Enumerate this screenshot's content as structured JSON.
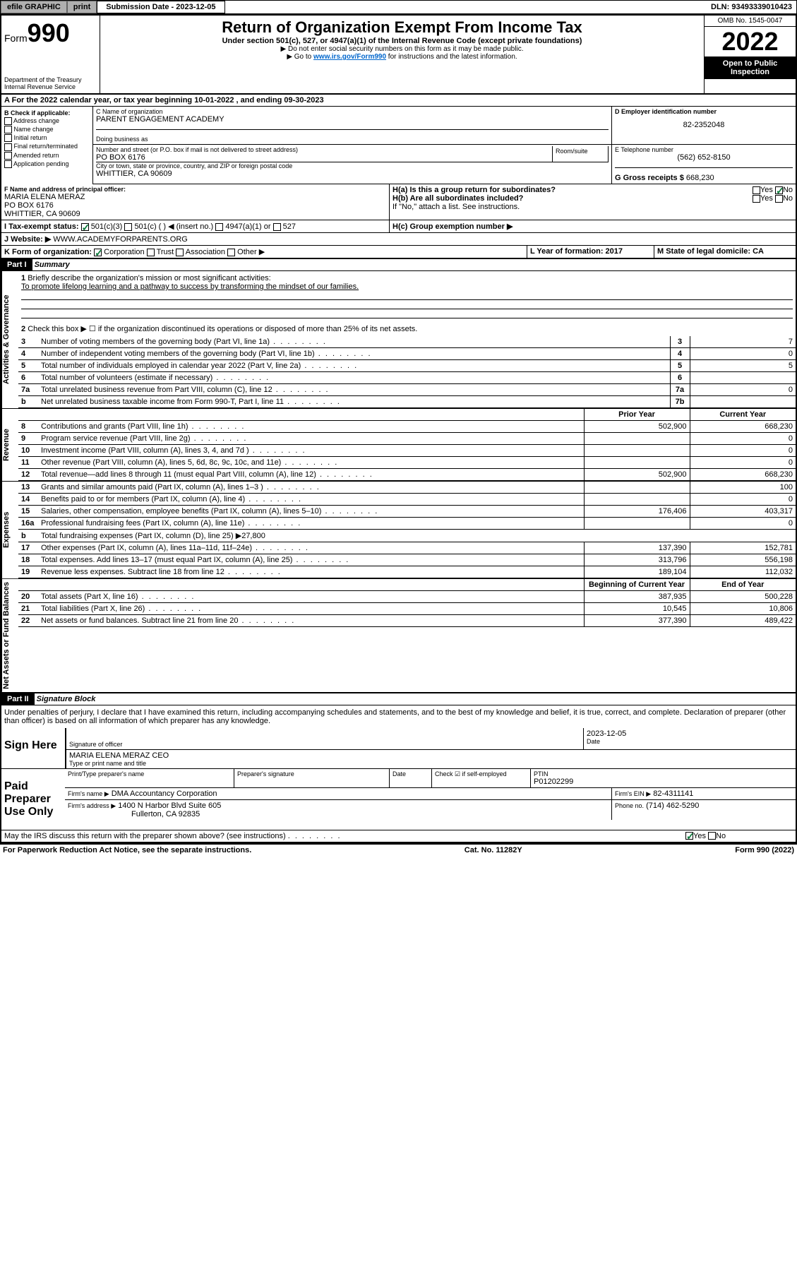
{
  "topbar": {
    "efile": "efile GRAPHIC",
    "print": "print",
    "sub_label": "Submission Date - 2023-12-05",
    "dln": "DLN: 93493339010423"
  },
  "header": {
    "form_prefix": "Form",
    "form_no": "990",
    "dept": "Department of the Treasury",
    "irs": "Internal Revenue Service",
    "title": "Return of Organization Exempt From Income Tax",
    "subtitle": "Under section 501(c), 527, or 4947(a)(1) of the Internal Revenue Code (except private foundations)",
    "note1": "▶ Do not enter social security numbers on this form as it may be made public.",
    "note2_pre": "▶ Go to ",
    "note2_link": "www.irs.gov/Form990",
    "note2_post": " for instructions and the latest information.",
    "omb": "OMB No. 1545-0047",
    "year": "2022",
    "open": "Open to Public Inspection"
  },
  "section_a": {
    "line": "For the 2022 calendar year, or tax year beginning 10-01-2022    , and ending 09-30-2023"
  },
  "section_b": {
    "label": "B Check if applicable:",
    "items": [
      "Address change",
      "Name change",
      "Initial return",
      "Final return/terminated",
      "Amended return",
      "Application pending"
    ]
  },
  "section_c": {
    "name_label": "C Name of organization",
    "name": "PARENT ENGAGEMENT ACADEMY",
    "dba_label": "Doing business as",
    "addr_label": "Number and street (or P.O. box if mail is not delivered to street address)",
    "room_label": "Room/suite",
    "addr": "PO BOX 6176",
    "city_label": "City or town, state or province, country, and ZIP or foreign postal code",
    "city": "WHITTIER, CA  90609"
  },
  "section_d": {
    "label": "D Employer identification number",
    "value": "82-2352048"
  },
  "section_e": {
    "label": "E Telephone number",
    "value": "(562) 652-8150"
  },
  "section_g": {
    "label": "G Gross receipts $",
    "value": "668,230"
  },
  "section_f": {
    "label": "F Name and address of principal officer:",
    "name": "MARIA ELENA MERAZ",
    "addr1": "PO BOX 6176",
    "addr2": "WHITTIER, CA  90609"
  },
  "section_h": {
    "ha_label": "H(a)  Is this a group return for subordinates?",
    "ha_yes": "Yes",
    "ha_no": "No",
    "hb_label": "H(b)  Are all subordinates included?",
    "hb_note": "If \"No,\" attach a list. See instructions.",
    "hc_label": "H(c)  Group exemption number ▶"
  },
  "section_i": {
    "label": "I    Tax-exempt status:",
    "opt1": "501(c)(3)",
    "opt2": "501(c) (  ) ◀ (insert no.)",
    "opt3": "4947(a)(1) or",
    "opt4": "527"
  },
  "section_j": {
    "label": "J    Website: ▶",
    "value": "WWW.ACADEMYFORPARENTS.ORG"
  },
  "section_k": {
    "label": "K Form of organization:",
    "opt1": "Corporation",
    "opt2": "Trust",
    "opt3": "Association",
    "opt4": "Other ▶"
  },
  "section_l": {
    "label": "L Year of formation: 2017"
  },
  "section_m": {
    "label": "M State of legal domicile: CA"
  },
  "part1": {
    "tag": "Part I",
    "title": "Summary",
    "side_labels": [
      "Activities & Governance",
      "Revenue",
      "Expenses",
      "Net Assets or Fund Balances"
    ],
    "q1_label": "Briefly describe the organization's mission or most significant activities:",
    "q1_text": "To promote lifelong learning and a pathway to success by transforming the mindset of our families.",
    "q2": "Check this box ▶ ☐  if the organization discontinued its operations or disposed of more than 25% of its net assets.",
    "rows_gov": [
      {
        "n": "3",
        "t": "Number of voting members of the governing body (Part VI, line 1a)",
        "box": "3",
        "v": "7"
      },
      {
        "n": "4",
        "t": "Number of independent voting members of the governing body (Part VI, line 1b)",
        "box": "4",
        "v": "0"
      },
      {
        "n": "5",
        "t": "Total number of individuals employed in calendar year 2022 (Part V, line 2a)",
        "box": "5",
        "v": "5"
      },
      {
        "n": "6",
        "t": "Total number of volunteers (estimate if necessary)",
        "box": "6",
        "v": ""
      },
      {
        "n": "7a",
        "t": "Total unrelated business revenue from Part VIII, column (C), line 12",
        "box": "7a",
        "v": "0"
      },
      {
        "n": "b",
        "t": "Net unrelated business taxable income from Form 990-T, Part I, line 11",
        "box": "7b",
        "v": ""
      }
    ],
    "col_hdr": {
      "prior": "Prior Year",
      "current": "Current Year"
    },
    "rows_rev": [
      {
        "n": "8",
        "t": "Contributions and grants (Part VIII, line 1h)",
        "p": "502,900",
        "c": "668,230"
      },
      {
        "n": "9",
        "t": "Program service revenue (Part VIII, line 2g)",
        "p": "",
        "c": "0"
      },
      {
        "n": "10",
        "t": "Investment income (Part VIII, column (A), lines 3, 4, and 7d )",
        "p": "",
        "c": "0"
      },
      {
        "n": "11",
        "t": "Other revenue (Part VIII, column (A), lines 5, 6d, 8c, 9c, 10c, and 11e)",
        "p": "",
        "c": "0"
      },
      {
        "n": "12",
        "t": "Total revenue—add lines 8 through 11 (must equal Part VIII, column (A), line 12)",
        "p": "502,900",
        "c": "668,230"
      }
    ],
    "rows_exp": [
      {
        "n": "13",
        "t": "Grants and similar amounts paid (Part IX, column (A), lines 1–3 )",
        "p": "",
        "c": "100"
      },
      {
        "n": "14",
        "t": "Benefits paid to or for members (Part IX, column (A), line 4)",
        "p": "",
        "c": "0"
      },
      {
        "n": "15",
        "t": "Salaries, other compensation, employee benefits (Part IX, column (A), lines 5–10)",
        "p": "176,406",
        "c": "403,317"
      },
      {
        "n": "16a",
        "t": "Professional fundraising fees (Part IX, column (A), line 11e)",
        "p": "",
        "c": "0"
      },
      {
        "n": "b",
        "t": "Total fundraising expenses (Part IX, column (D), line 25) ▶27,800",
        "p": "—",
        "c": "—"
      },
      {
        "n": "17",
        "t": "Other expenses (Part IX, column (A), lines 11a–11d, 11f–24e)",
        "p": "137,390",
        "c": "152,781"
      },
      {
        "n": "18",
        "t": "Total expenses. Add lines 13–17 (must equal Part IX, column (A), line 25)",
        "p": "313,796",
        "c": "556,198"
      },
      {
        "n": "19",
        "t": "Revenue less expenses. Subtract line 18 from line 12",
        "p": "189,104",
        "c": "112,032"
      }
    ],
    "col_hdr2": {
      "begin": "Beginning of Current Year",
      "end": "End of Year"
    },
    "rows_net": [
      {
        "n": "20",
        "t": "Total assets (Part X, line 16)",
        "p": "387,935",
        "c": "500,228"
      },
      {
        "n": "21",
        "t": "Total liabilities (Part X, line 26)",
        "p": "10,545",
        "c": "10,806"
      },
      {
        "n": "22",
        "t": "Net assets or fund balances. Subtract line 21 from line 20",
        "p": "377,390",
        "c": "489,422"
      }
    ]
  },
  "part2": {
    "tag": "Part II",
    "title": "Signature Block",
    "decl": "Under penalties of perjury, I declare that I have examined this return, including accompanying schedules and statements, and to the best of my knowledge and belief, it is true, correct, and complete. Declaration of preparer (other than officer) is based on all information of which preparer has any knowledge.",
    "sign_here": "Sign Here",
    "sig_officer": "Signature of officer",
    "date_label": "Date",
    "date": "2023-12-05",
    "officer_name": "MARIA ELENA MERAZ CEO",
    "officer_sub": "Type or print name and title",
    "paid": "Paid Preparer Use Only",
    "prep_name_label": "Print/Type preparer's name",
    "prep_sig_label": "Preparer's signature",
    "check_self": "Check ☑ if self-employed",
    "ptin_label": "PTIN",
    "ptin": "P01202299",
    "firm_name_label": "Firm's name   ▶",
    "firm_name": "DMA Accountancy Corporation",
    "firm_ein_label": "Firm's EIN ▶",
    "firm_ein": "82-4311141",
    "firm_addr_label": "Firm's address ▶",
    "firm_addr1": "1400 N Harbor Blvd Suite 605",
    "firm_addr2": "Fullerton, CA  92835",
    "phone_label": "Phone no.",
    "phone": "(714) 462-5290",
    "discuss": "May the IRS discuss this return with the preparer shown above? (see instructions)",
    "yes": "Yes",
    "no": "No"
  },
  "footer": {
    "left": "For Paperwork Reduction Act Notice, see the separate instructions.",
    "mid": "Cat. No. 11282Y",
    "right": "Form 990 (2022)"
  }
}
